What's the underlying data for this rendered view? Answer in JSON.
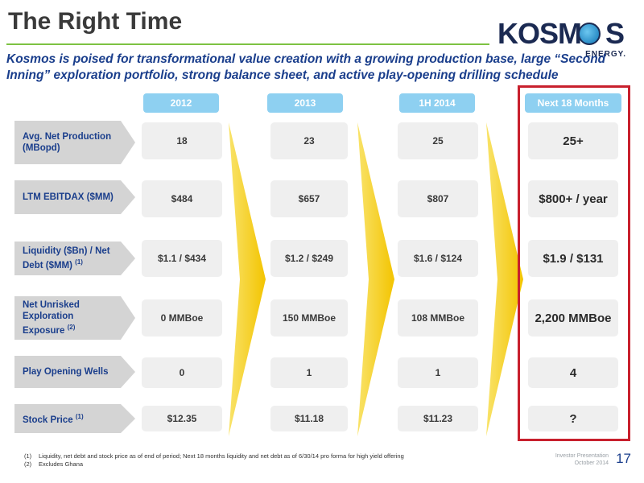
{
  "title": "The Right Time",
  "logo": {
    "text_left": "KOSM",
    "text_right": "S",
    "sub": "ENERGY."
  },
  "subtitle": "Kosmos is poised for transformational value creation with a growing production base, large “Second Inning” exploration portfolio, strong balance sheet, and active play-opening drilling schedule",
  "columns": [
    "2012",
    "2013",
    "1H 2014",
    "Next 18 Months"
  ],
  "rows": [
    {
      "label": "Avg. Net Production (MBopd)",
      "sup": "",
      "values": [
        "18",
        "23",
        "25",
        "25+"
      ]
    },
    {
      "label": "LTM EBITDAX ($MM)",
      "sup": "",
      "values": [
        "$484",
        "$657",
        "$807",
        "$800+ / year"
      ]
    },
    {
      "label": "Liquidity ($Bn) / Net Debt ($MM)",
      "sup": "(1)",
      "values": [
        "$1.1 / $434",
        "$1.2 / $249",
        "$1.6 / $124",
        "$1.9 / $131"
      ]
    },
    {
      "label": "Net Unrisked Exploration Exposure",
      "sup": "(2)",
      "values": [
        "0 MMBoe",
        "150 MMBoe",
        "108 MMBoe",
        "2,200 MMBoe"
      ]
    },
    {
      "label": "Play Opening Wells",
      "sup": "",
      "values": [
        "0",
        "1",
        "1",
        "4"
      ]
    },
    {
      "label": "Stock Price",
      "sup": "(1)",
      "values": [
        "$12.35",
        "$11.18",
        "$11.23",
        "?"
      ]
    }
  ],
  "footnotes": [
    {
      "num": "(1)",
      "text": "Liquidity, net debt and stock price as of end of period; Next 18 months liquidity and net debt as of 6/30/14 pro forma for high yield offering"
    },
    {
      "num": "(2)",
      "text": "Excludes Ghana"
    }
  ],
  "footer": {
    "line1": "Investor Presentation",
    "line2": "October 2014",
    "page": "17"
  },
  "colors": {
    "accent_blue": "#1a3e8c",
    "header_blue": "#8ed0f1",
    "chevron_yellow": "#f7d117",
    "highlight_red": "#c8202d",
    "rule_green": "#7dc242"
  }
}
